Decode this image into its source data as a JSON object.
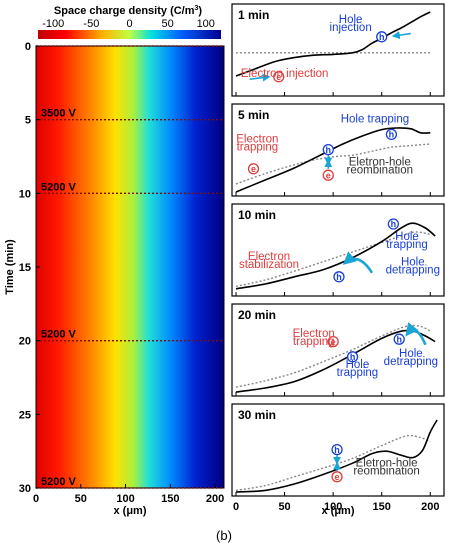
{
  "caption": "(b)",
  "colors": {
    "hole": "#1a3fd6",
    "electron": "#e03c3c",
    "arrow": "#1aa5d8",
    "rise": "#333333",
    "grid": "#555555"
  },
  "chart_data": [
    {
      "type": "heatmap",
      "colorbar": {
        "title": "Space charge density (C/m",
        "title_sup": "3",
        "title_end": ")",
        "ticks": [
          -100,
          -50,
          0,
          50,
          100
        ],
        "tick_labels": [
          "-100",
          "-50",
          "0",
          "50",
          "100"
        ],
        "range": [
          -120,
          120
        ],
        "colormap": "jet"
      },
      "xlabel": "x (μm)",
      "ylabel": "Time (min)",
      "xlim": [
        0,
        210
      ],
      "ylim": [
        0,
        30
      ],
      "xticks": [
        0,
        50,
        100,
        150,
        200
      ],
      "xtick_labels": [
        "0",
        "50",
        "100",
        "150",
        "200"
      ],
      "yticks": [
        0,
        5,
        10,
        15,
        20,
        25,
        30
      ],
      "ytick_labels": [
        "0",
        "5",
        "10",
        "15",
        "20",
        "25",
        "30"
      ],
      "voltage_steps": [
        {
          "time": 0,
          "label": ""
        },
        {
          "time": 5,
          "label": "3500 V"
        },
        {
          "time": 10,
          "label": "5200 V"
        },
        {
          "time": 20,
          "label": "5200 V"
        },
        {
          "time": 30,
          "label": "5200 V"
        }
      ],
      "profile_x": [
        0,
        20,
        40,
        60,
        80,
        100,
        120,
        140,
        160,
        180,
        200,
        210
      ],
      "profile_density": [
        -120,
        -110,
        -95,
        -75,
        -45,
        -10,
        25,
        55,
        80,
        100,
        115,
        120
      ]
    },
    {
      "type": "line",
      "xlabel": "x (μm)",
      "xlim": [
        0,
        210
      ],
      "xticks": [
        0,
        50,
        100,
        150,
        200
      ],
      "xtick_labels": [
        "0",
        "50",
        "100",
        "150",
        "200"
      ],
      "panels": [
        {
          "title": "1 min",
          "ylim": [
            0,
            10
          ],
          "baseline": 5.0,
          "dotted": {
            "x": [
              0,
              40,
              80,
              120,
              160,
              200
            ],
            "y": [
              4.9,
              4.9,
              4.9,
              4.9,
              4.9,
              4.9
            ]
          },
          "solid": {
            "x": [
              0,
              20,
              40,
              60,
              80,
              100,
              120,
              130,
              140,
              150,
              160,
              170,
              180,
              190,
              200
            ],
            "y": [
              2.0,
              2.9,
              3.8,
              4.3,
              4.6,
              4.7,
              4.9,
              5.3,
              6.1,
              6.7,
              7.4,
              8.0,
              8.7,
              9.4,
              10.0
            ]
          },
          "annotations": [
            {
              "text": "Hole",
              "color": "hole",
              "x": 118,
              "y": 8.6
            },
            {
              "text": "injection",
              "color": "hole",
              "x": 118,
              "y": 7.6
            },
            {
              "text": "Electron injection",
              "color": "electron",
              "x": 50,
              "y": 1.9
            }
          ],
          "carriers": [
            {
              "type": "hole",
              "symbol": "h",
              "x": 150,
              "y": 6.9
            },
            {
              "type": "electron",
              "symbol": "e",
              "x": 44,
              "y": 1.9
            }
          ],
          "arrows": [
            {
              "x1": 180,
              "y1": 7.3,
              "x2": 162,
              "y2": 7.0
            },
            {
              "x1": 14,
              "y1": 1.6,
              "x2": 34,
              "y2": 1.9
            }
          ]
        },
        {
          "title": "5 min",
          "ylim": [
            0,
            10
          ],
          "dotted": {
            "x": [
              0,
              30,
              60,
              80,
              100,
              120,
              140,
              160,
              180,
              200
            ],
            "y": [
              1.0,
              2.3,
              3.4,
              4.0,
              4.4,
              4.6,
              5.1,
              5.6,
              5.8,
              6.0
            ]
          },
          "solid": {
            "x": [
              0,
              30,
              60,
              90,
              110,
              130,
              150,
              165,
              180,
              190,
              200
            ],
            "y": [
              0.0,
              1.5,
              3.0,
              4.8,
              6.0,
              7.0,
              7.8,
              8.0,
              7.9,
              7.4,
              7.4
            ]
          },
          "annotations": [
            {
              "text": "Hole trapping",
              "color": "hole",
              "x": 143,
              "y": 8.7
            },
            {
              "text": "Electron",
              "color": "electron",
              "x": 22,
              "y": 6.2
            },
            {
              "text": "trapping",
              "color": "electron",
              "x": 22,
              "y": 5.2
            },
            {
              "text": "Eletron-hole",
              "color": "rise",
              "x": 148,
              "y": 3.3
            },
            {
              "text": "reombination",
              "color": "rise",
              "x": 148,
              "y": 2.3
            }
          ],
          "carriers": [
            {
              "type": "hole",
              "symbol": "h",
              "x": 160,
              "y": 7.2
            },
            {
              "type": "hole",
              "symbol": "h",
              "x": 95,
              "y": 5.3
            },
            {
              "type": "electron",
              "symbol": "e",
              "x": 95,
              "y": 2.1
            },
            {
              "type": "electron",
              "symbol": "e",
              "x": 18,
              "y": 2.9
            }
          ],
          "arrows": [
            {
              "x1": 95,
              "y1": 4.6,
              "x2": 95,
              "y2": 3.5
            },
            {
              "x1": 95,
              "y1": 2.9,
              "x2": 95,
              "y2": 3.9
            }
          ]
        },
        {
          "title": "10 min",
          "ylim": [
            0,
            10
          ],
          "dotted": {
            "x": [
              0,
              30,
              60,
              90,
              120,
              150,
              170,
              185,
              200
            ],
            "y": [
              0.7,
              1.5,
              2.6,
              3.8,
              5.0,
              6.2,
              7.0,
              7.5,
              7.2
            ]
          },
          "solid": {
            "x": [
              0,
              30,
              60,
              90,
              120,
              150,
              170,
              182,
              195,
              205
            ],
            "y": [
              0.4,
              1.0,
              1.9,
              2.8,
              4.3,
              6.3,
              8.0,
              8.6,
              8.0,
              7.0
            ]
          },
          "annotations": [
            {
              "text": "Hole",
              "color": "hole",
              "x": 176,
              "y": 6.5
            },
            {
              "text": "trapping",
              "color": "hole",
              "x": 176,
              "y": 5.5
            },
            {
              "text": "Electron",
              "color": "electron",
              "x": 34,
              "y": 4.0
            },
            {
              "text": "stabilization",
              "color": "electron",
              "x": 34,
              "y": 3.0
            },
            {
              "text": "Hole",
              "color": "hole",
              "x": 182,
              "y": 3.3
            },
            {
              "text": "detrapping",
              "color": "hole",
              "x": 182,
              "y": 2.3
            }
          ],
          "carriers": [
            {
              "type": "hole",
              "symbol": "h",
              "x": 162,
              "y": 8.5
            },
            {
              "type": "hole",
              "symbol": "h",
              "x": 106,
              "y": 1.9
            }
          ],
          "arrows": [
            {
              "x1": 140,
              "y1": 2.4,
              "x2": 112,
              "y2": 3.6,
              "curved": true
            }
          ]
        },
        {
          "title": "20 min",
          "ylim": [
            0,
            10
          ],
          "dotted": {
            "x": [
              0,
              30,
              60,
              90,
              120,
              150,
              175,
              190,
              200
            ],
            "y": [
              0.6,
              1.4,
              2.4,
              3.8,
              5.3,
              7.0,
              8.2,
              8.2,
              7.6
            ]
          },
          "solid": {
            "x": [
              0,
              30,
              60,
              90,
              120,
              150,
              170,
              183,
              195,
              205
            ],
            "y": [
              0.0,
              0.5,
              1.3,
              2.8,
              4.7,
              6.7,
              7.6,
              7.6,
              7.0,
              6.3
            ]
          },
          "annotations": [
            {
              "text": "Electron",
              "color": "electron",
              "x": 80,
              "y": 6.9
            },
            {
              "text": "trapping",
              "color": "electron",
              "x": 80,
              "y": 5.9
            },
            {
              "text": "Hole",
              "color": "hole",
              "x": 180,
              "y": 4.4
            },
            {
              "text": "detrapping",
              "color": "hole",
              "x": 180,
              "y": 3.4
            },
            {
              "text": "Hole",
              "color": "hole",
              "x": 125,
              "y": 3.0
            },
            {
              "text": "trapping",
              "color": "hole",
              "x": 125,
              "y": 2.0
            }
          ],
          "carriers": [
            {
              "type": "electron",
              "symbol": "e",
              "x": 100,
              "y": 6.3
            },
            {
              "type": "hole",
              "symbol": "h",
              "x": 168,
              "y": 6.6
            },
            {
              "type": "hole",
              "symbol": "h",
              "x": 120,
              "y": 4.4
            }
          ],
          "arrows": [
            {
              "x1": 195,
              "y1": 5.9,
              "x2": 176,
              "y2": 7.2,
              "curved": true
            }
          ]
        },
        {
          "title": "30 min",
          "ylim": [
            0,
            10
          ],
          "dotted": {
            "x": [
              0,
              30,
              60,
              90,
              120,
              150,
              175,
              190,
              200
            ],
            "y": [
              0.2,
              0.8,
              1.9,
              3.0,
              4.2,
              5.8,
              7.0,
              6.8,
              6.3
            ]
          },
          "solid": {
            "x": [
              0,
              30,
              60,
              90,
              120,
              140,
              155,
              170,
              182,
              192,
              200,
              207
            ],
            "y": [
              0.0,
              0.2,
              1.0,
              2.2,
              3.6,
              4.8,
              5.1,
              4.6,
              4.3,
              5.2,
              7.5,
              9.0
            ]
          },
          "annotations": [
            {
              "text": "Eletron-hole",
              "color": "rise",
              "x": 155,
              "y": 3.2
            },
            {
              "text": "reombination",
              "color": "rise",
              "x": 155,
              "y": 2.2
            }
          ],
          "carriers": [
            {
              "type": "hole",
              "symbol": "h",
              "x": 104,
              "y": 5.3
            },
            {
              "type": "electron",
              "symbol": "e",
              "x": 104,
              "y": 1.9
            }
          ],
          "arrows": [
            {
              "x1": 104,
              "y1": 4.6,
              "x2": 104,
              "y2": 3.6
            },
            {
              "x1": 104,
              "y1": 2.6,
              "x2": 104,
              "y2": 3.6
            }
          ]
        }
      ]
    }
  ]
}
